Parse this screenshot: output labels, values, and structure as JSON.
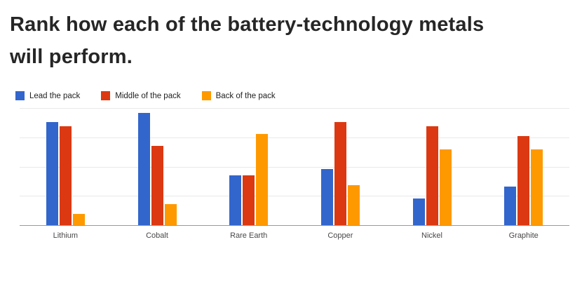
{
  "title": {
    "text": "Rank how each of the battery-technology metals will perform."
  },
  "chart_data": {
    "type": "bar",
    "title": "Rank how each of the battery-technology metals will perform.",
    "categories": [
      "Lithium",
      "Cobalt",
      "Rare Earth",
      "Copper",
      "Nickel",
      "Graphite"
    ],
    "series": [
      {
        "name": "Lead the pack",
        "color": "#3366CC",
        "values": [
          53,
          58,
          26,
          29,
          14,
          20
        ]
      },
      {
        "name": "Middle of the pack",
        "color": "#DC3912",
        "values": [
          51,
          41,
          26,
          53,
          51,
          46
        ]
      },
      {
        "name": "Back of the pack",
        "color": "#FF9900",
        "values": [
          6,
          11,
          47,
          21,
          39,
          39
        ]
      }
    ],
    "xlabel": "",
    "ylabel": "",
    "ylim": [
      0,
      60
    ],
    "gridline_values": [
      0,
      15,
      30,
      45,
      60
    ],
    "grid": true,
    "legend_position": "top-left"
  }
}
